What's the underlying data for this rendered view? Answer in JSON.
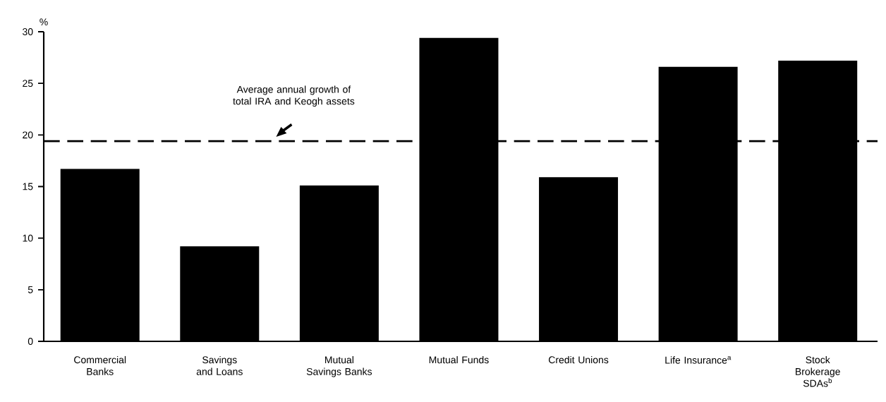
{
  "chart_data": {
    "type": "bar",
    "ylabel": "%",
    "categories": [
      "Commercial Banks",
      "Savings and Loans",
      "Mutual Savings Banks",
      "Mutual Funds",
      "Credit Unions",
      "Life Insurance$^{a}$",
      "Stock Brokerage SDAs$^{b}$"
    ],
    "values": [
      16.7,
      9.2,
      15.1,
      29.4,
      15.9,
      26.6,
      27.2
    ],
    "color": "#000000",
    "ylim": [
      0,
      30
    ],
    "yticks": [
      0,
      5,
      10,
      15,
      20,
      25,
      30
    ],
    "ref_lines": [
      {
        "axis": "y",
        "value": 19.4,
        "label": "Average annual growth of total IRA and Keogh assets",
        "line_style": "dashed",
        "color": "#000000"
      }
    ]
  }
}
